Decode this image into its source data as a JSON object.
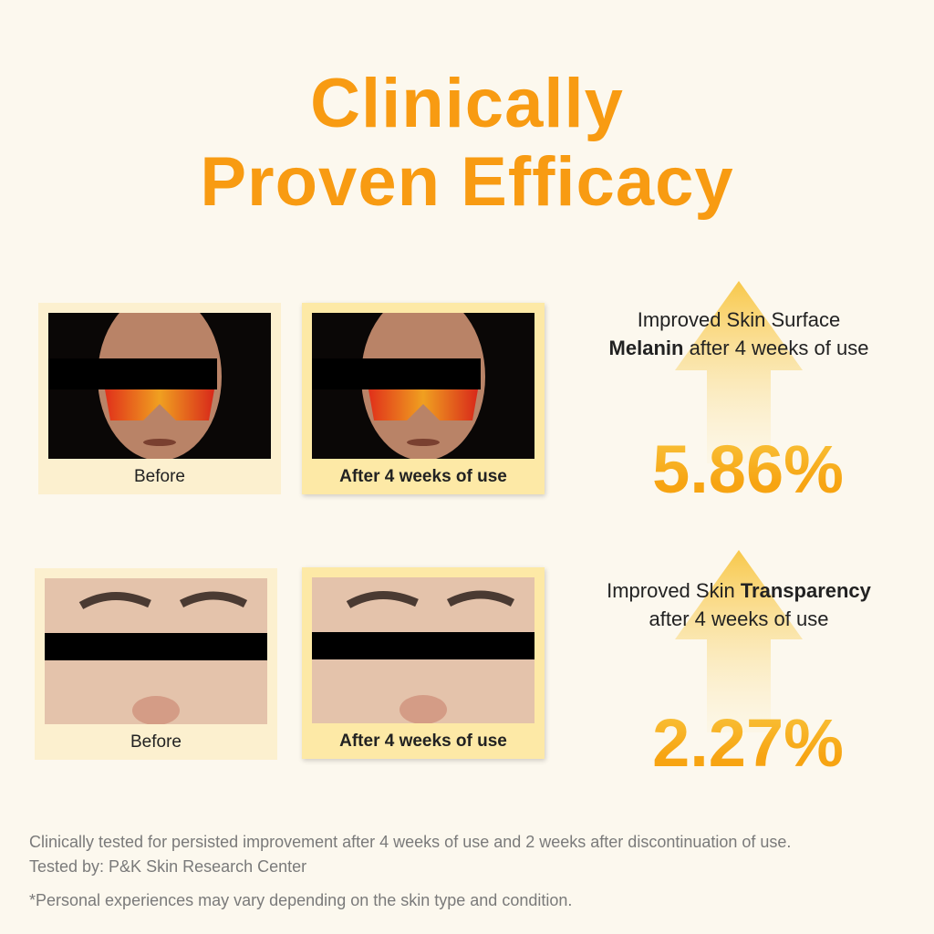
{
  "header": {
    "title_lines": [
      "Clinically",
      "Proven Efficacy"
    ]
  },
  "results": [
    {
      "caption_before": "Before",
      "caption_after": "After 4 weeks of use",
      "text_parts": [
        "Improved Skin Surface",
        "Melanin",
        "after 4 weeks of use"
      ],
      "percent": "5.86%"
    },
    {
      "caption_before": "Before",
      "caption_after": "After 4 weeks of use",
      "text_parts": [
        "Improved Skin",
        "Transparency",
        "after 4 weeks of use"
      ],
      "percent": "2.27%"
    }
  ],
  "footer": {
    "lines": [
      "Clinically tested for persisted improvement after 4 weeks of use and 2 weeks after discontinuation of use.",
      "Tested by: P&K Skin Research Center",
      "*Personal experiences may vary depending on the skin type and condition."
    ]
  }
}
